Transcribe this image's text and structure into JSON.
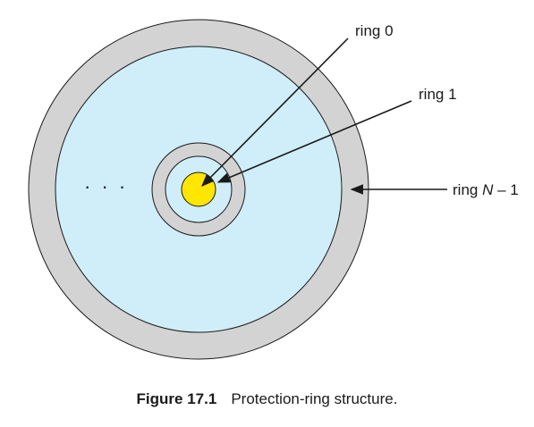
{
  "diagram": {
    "labels": {
      "ring0": "ring 0",
      "ring1": "ring 1",
      "ringN_prefix": "ring ",
      "ringN_var": "N",
      "ringN_suffix": " – 1"
    },
    "ellipsis": "· · ·",
    "colors": {
      "outer_ring": "#d3d3d3",
      "outer_band_fill": "#cfeef9",
      "inner_ring": "#d3d3d3",
      "inner_band_fill": "#cfeef9",
      "core": "#ffe600",
      "stroke": "#1a1a1a"
    }
  },
  "caption": {
    "figure_number": "Figure 17.1",
    "text": "Protection-ring structure."
  }
}
